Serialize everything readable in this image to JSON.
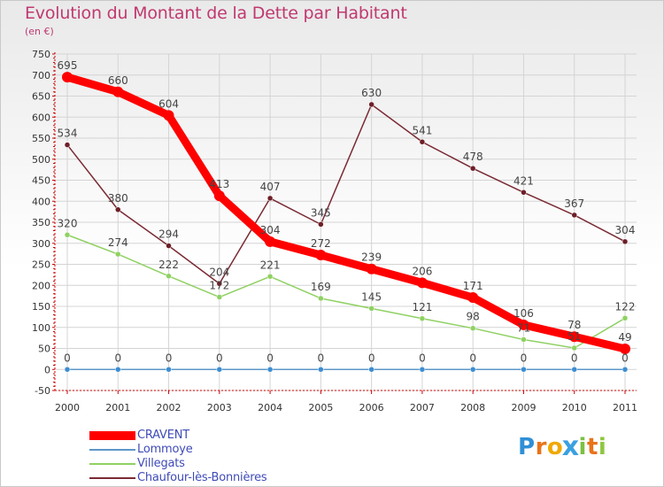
{
  "chart_data": {
    "type": "line",
    "title": "Evolution du Montant de la Dette par Habitant",
    "subtitle": "(en €)",
    "xlabel": "",
    "ylabel": "",
    "categories": [
      "2000",
      "2001",
      "2002",
      "2003",
      "2004",
      "2005",
      "2006",
      "2007",
      "2008",
      "2009",
      "2010",
      "2011"
    ],
    "ylim": [
      -50,
      750
    ],
    "yticks": [
      "-50",
      "0",
      "50",
      "100",
      "150",
      "200",
      "250",
      "300",
      "350",
      "400",
      "450",
      "500",
      "550",
      "600",
      "650",
      "700",
      "750"
    ],
    "grid": true,
    "legend_position": "bottom-left",
    "series": [
      {
        "name": "CRAVENT",
        "color": "#ff0000",
        "values": [
          695,
          660,
          604,
          413,
          304,
          272,
          239,
          206,
          171,
          106,
          78,
          49
        ],
        "labels": [
          "695",
          "660",
          "604",
          "413",
          "304",
          "272",
          "239",
          "206",
          "171",
          "106",
          "78",
          "49"
        ]
      },
      {
        "name": "Lommoye",
        "color": "#5b97c9",
        "values": [
          0,
          0,
          0,
          0,
          0,
          0,
          0,
          0,
          0,
          0,
          0,
          0
        ],
        "labels": [
          "0",
          "0",
          "0",
          "0",
          "0",
          "0",
          "0",
          "0",
          "0",
          "0",
          "0",
          "0"
        ]
      },
      {
        "name": "Villegats",
        "color": "#8fd162",
        "values": [
          320,
          274,
          222,
          172,
          221,
          169,
          145,
          121,
          98,
          71,
          51,
          122
        ],
        "labels": [
          "320",
          "274",
          "222",
          "172",
          "221",
          "169",
          "145",
          "121",
          "98",
          "71",
          "51",
          "122"
        ]
      },
      {
        "name": "Chaufour-lès-Bonnières",
        "color": "#7a2a33",
        "values": [
          534,
          380,
          294,
          204,
          407,
          345,
          630,
          541,
          478,
          421,
          367,
          304
        ],
        "labels": [
          "534",
          "380",
          "294",
          "204",
          "407",
          "345",
          "630",
          "541",
          "478",
          "421",
          "367",
          "304"
        ]
      }
    ]
  },
  "logo": {
    "letters": [
      "P",
      "r",
      "o",
      "x",
      "i",
      "t",
      "i"
    ],
    "colors": [
      "#2f8fd6",
      "#e8731a",
      "#f0a800",
      "#3aa0e0",
      "#7bc043",
      "#e8731a",
      "#8ec63f"
    ]
  }
}
